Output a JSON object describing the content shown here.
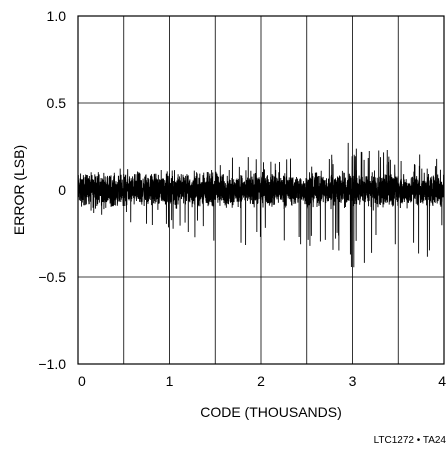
{
  "chart_data": {
    "type": "line",
    "title": "",
    "xlabel": "CODE (THOUSANDS)",
    "ylabel": "ERROR (LSB)",
    "xlim": [
      0,
      4
    ],
    "ylim": [
      -1.0,
      1.0
    ],
    "x_ticks": [
      0,
      1,
      2,
      3,
      4
    ],
    "x_tick_labels": [
      "0",
      "1",
      "2",
      "3",
      "4"
    ],
    "x_minor_gridlines": [
      0.5,
      1.5,
      2.5,
      3.5
    ],
    "y_ticks": [
      -1.0,
      -0.5,
      0,
      0.5,
      1.0
    ],
    "y_tick_labels": [
      "−1.0",
      "−0.5",
      "0",
      "0.5",
      "1.0"
    ],
    "grid": true,
    "series_description": "dense noise band around 0 LSB, roughly ±0.1 LSB, peaks near +0.3 and -0.45 LSB",
    "series_envelope": {
      "x": [
        0.0,
        0.5,
        1.0,
        1.5,
        1.9,
        2.0,
        2.5,
        2.9,
        3.0,
        3.3,
        3.5,
        3.9,
        4.0
      ],
      "upper": [
        0.12,
        0.13,
        0.14,
        0.16,
        0.25,
        0.18,
        0.19,
        0.26,
        0.31,
        0.24,
        0.22,
        0.22,
        0.15
      ],
      "lower": [
        -0.15,
        -0.2,
        -0.25,
        -0.3,
        -0.33,
        -0.3,
        -0.35,
        -0.4,
        -0.45,
        -0.42,
        -0.42,
        -0.45,
        -0.3
      ]
    },
    "footnote": "LTC1272 • TA24"
  }
}
